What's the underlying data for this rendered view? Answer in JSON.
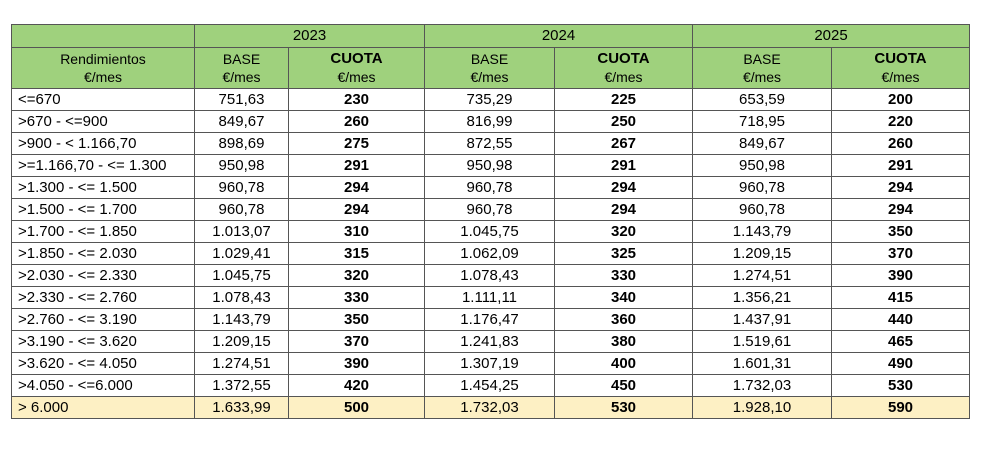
{
  "header": {
    "years": [
      "2023",
      "2024",
      "2025"
    ],
    "range_label": "Rendimientos",
    "range_unit": "€/mes",
    "base_label": "BASE",
    "cuota_label": "CUOTA",
    "unit": "€/mes"
  },
  "rows": [
    {
      "range": "<=670",
      "v": [
        "751,63",
        "230",
        "735,29",
        "225",
        "653,59",
        "200"
      ]
    },
    {
      "range": ">670 - <=900",
      "v": [
        "849,67",
        "260",
        "816,99",
        "250",
        "718,95",
        "220"
      ]
    },
    {
      "range": ">900 - < 1.166,70",
      "v": [
        "898,69",
        "275",
        "872,55",
        "267",
        "849,67",
        "260"
      ]
    },
    {
      "range": ">=1.166,70 - <= 1.300",
      "v": [
        "950,98",
        "291",
        "950,98",
        "291",
        "950,98",
        "291"
      ]
    },
    {
      "range": ">1.300 - <= 1.500",
      "v": [
        "960,78",
        "294",
        "960,78",
        "294",
        "960,78",
        "294"
      ]
    },
    {
      "range": ">1.500 - <= 1.700",
      "v": [
        "960,78",
        "294",
        "960,78",
        "294",
        "960,78",
        "294"
      ]
    },
    {
      "range": ">1.700 - <= 1.850",
      "v": [
        "1.013,07",
        "310",
        "1.045,75",
        "320",
        "1.143,79",
        "350"
      ]
    },
    {
      "range": ">1.850 - <= 2.030",
      "v": [
        "1.029,41",
        "315",
        "1.062,09",
        "325",
        "1.209,15",
        "370"
      ]
    },
    {
      "range": ">2.030 - <= 2.330",
      "v": [
        "1.045,75",
        "320",
        "1.078,43",
        "330",
        "1.274,51",
        "390"
      ]
    },
    {
      "range": ">2.330 - <= 2.760",
      "v": [
        "1.078,43",
        "330",
        "1.111,11",
        "340",
        "1.356,21",
        "415"
      ]
    },
    {
      "range": ">2.760 - <= 3.190",
      "v": [
        "1.143,79",
        "350",
        "1.176,47",
        "360",
        "1.437,91",
        "440"
      ]
    },
    {
      "range": ">3.190 - <= 3.620",
      "v": [
        "1.209,15",
        "370",
        "1.241,83",
        "380",
        "1.519,61",
        "465"
      ]
    },
    {
      "range": ">3.620 - <= 4.050",
      "v": [
        "1.274,51",
        "390",
        "1.307,19",
        "400",
        "1.601,31",
        "490"
      ]
    },
    {
      "range": ">4.050 - <=6.000",
      "v": [
        "1.372,55",
        "420",
        "1.454,25",
        "450",
        "1.732,03",
        "530"
      ]
    },
    {
      "range": "> 6.000",
      "v": [
        "1.633,99",
        "500",
        "1.732,03",
        "530",
        "1.928,10",
        "590"
      ],
      "highlight": true
    }
  ],
  "colors": {
    "header_green": "#9fd17d",
    "highlight_row": "#fdf0c4"
  }
}
